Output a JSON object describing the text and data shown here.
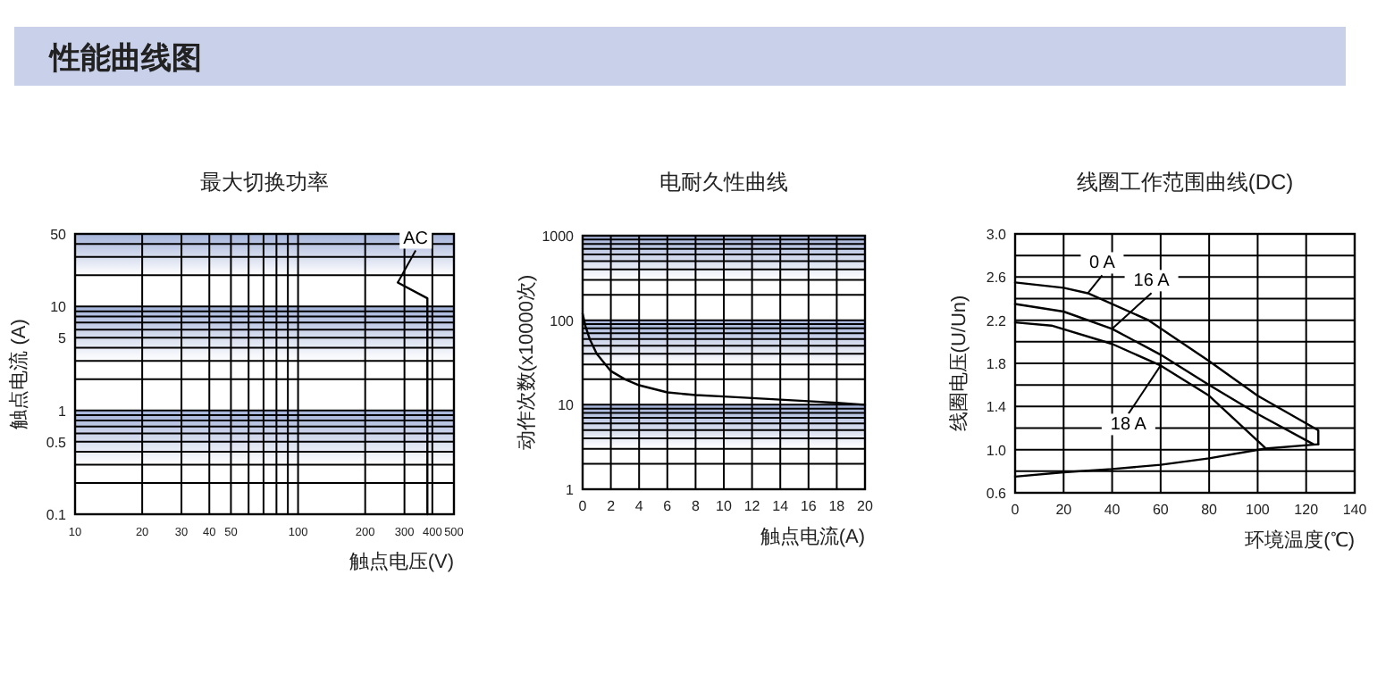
{
  "chart_data": [
    {
      "type": "other",
      "title": "性能曲线图"
    },
    {
      "type": "line",
      "title": "最大切换功率",
      "xlabel": "触点电压(V)",
      "ylabel": "触点电流 (A)",
      "log": "xy",
      "xlim": [
        10,
        500
      ],
      "ylim": [
        0.1,
        50
      ],
      "xticks": [
        10,
        20,
        30,
        40,
        50,
        {
          "value": 60,
          "label": null
        },
        {
          "value": 70,
          "label": null
        },
        {
          "value": 80,
          "label": null
        },
        {
          "value": 90,
          "label": null
        },
        100,
        200,
        300,
        400,
        500
      ],
      "yticks": [
        0.1,
        {
          "value": 0.2,
          "label": null
        },
        {
          "value": 0.3,
          "label": null
        },
        {
          "value": 0.4,
          "label": null
        },
        0.5,
        {
          "value": 0.6,
          "label": null
        },
        {
          "value": 0.7,
          "label": null
        },
        {
          "value": 0.8,
          "label": null
        },
        {
          "value": 0.9,
          "label": null
        },
        1,
        {
          "value": 2,
          "label": null
        },
        {
          "value": 3,
          "label": null
        },
        {
          "value": 4,
          "label": null
        },
        5,
        {
          "value": 6,
          "label": null
        },
        {
          "value": 7,
          "label": null
        },
        {
          "value": 8,
          "label": null
        },
        {
          "value": 9,
          "label": null
        },
        10,
        {
          "value": 20,
          "label": null
        },
        {
          "value": 30,
          "label": null
        },
        {
          "value": 40,
          "label": null
        },
        50
      ],
      "grid": true,
      "bands": [
        {
          "axis": "y",
          "from": 0.3,
          "to": 1,
          "color": "#a4b3da"
        },
        {
          "axis": "y",
          "from": 3,
          "to": 10,
          "color": "#a4b3da"
        },
        {
          "axis": "y",
          "from": 20,
          "to": 50,
          "color": "#a4b3da"
        }
      ],
      "series": [
        {
          "name": "AC",
          "color": "#000000",
          "x": [
            280,
            380,
            380
          ],
          "values": [
            17,
            12,
            0.1
          ]
        }
      ]
    },
    {
      "type": "line",
      "title": "电耐久性曲线",
      "xlabel": "触点电流(A)",
      "ylabel": "动作次数(x10000次)",
      "log": "y",
      "xlim": [
        0,
        20
      ],
      "ylim": [
        1,
        1000
      ],
      "xticks": [
        0,
        2,
        4,
        6,
        8,
        10,
        12,
        14,
        16,
        18,
        20
      ],
      "yticks": [
        1,
        {
          "value": 2,
          "label": null
        },
        {
          "value": 3,
          "label": null
        },
        {
          "value": 4,
          "label": null
        },
        {
          "value": 5,
          "label": null
        },
        {
          "value": 6,
          "label": null
        },
        {
          "value": 7,
          "label": null
        },
        {
          "value": 8,
          "label": null
        },
        {
          "value": 9,
          "label": null
        },
        10,
        {
          "value": 20,
          "label": null
        },
        {
          "value": 30,
          "label": null
        },
        {
          "value": 40,
          "label": null
        },
        {
          "value": 50,
          "label": null
        },
        {
          "value": 60,
          "label": null
        },
        {
          "value": 70,
          "label": null
        },
        {
          "value": 80,
          "label": null
        },
        {
          "value": 90,
          "label": null
        },
        100,
        {
          "value": 200,
          "label": null
        },
        {
          "value": 300,
          "label": null
        },
        {
          "value": 400,
          "label": null
        },
        {
          "value": 500,
          "label": null
        },
        {
          "value": 600,
          "label": null
        },
        {
          "value": 700,
          "label": null
        },
        {
          "value": 800,
          "label": null
        },
        {
          "value": 900,
          "label": null
        },
        1000
      ],
      "grid": true,
      "bands": [
        {
          "axis": "y",
          "from": 3,
          "to": 10,
          "color": "#a4b3da"
        },
        {
          "axis": "y",
          "from": 30,
          "to": 100,
          "color": "#a4b3da"
        },
        {
          "axis": "y",
          "from": 300,
          "to": 1000,
          "color": "#a4b3da"
        }
      ],
      "series": [
        {
          "color": "#000000",
          "x": [
            0,
            0.2,
            0.5,
            1,
            2,
            3,
            4,
            6,
            8,
            10,
            12,
            14,
            16,
            18,
            20
          ],
          "values": [
            120,
            85,
            60,
            40,
            25,
            20,
            17,
            14,
            13,
            12.5,
            12,
            11.5,
            11,
            10.5,
            10
          ]
        }
      ]
    },
    {
      "type": "line",
      "title": "线圈工作范围曲线(DC)",
      "xlabel": "环境温度(℃)",
      "ylabel": "线圈电压(U/Un)",
      "xlim": [
        0,
        140
      ],
      "ylim": [
        0.6,
        3.0
      ],
      "xticks": [
        0,
        20,
        40,
        60,
        80,
        100,
        120,
        140
      ],
      "yticks": [
        0.6,
        {
          "value": 0.8,
          "label": null
        },
        {
          "value": 1.0,
          "label": "1.0"
        },
        {
          "value": 1.2,
          "label": null
        },
        1.4,
        {
          "value": 1.6,
          "label": null
        },
        1.8,
        {
          "value": 2.0,
          "label": null
        },
        2.2,
        {
          "value": 2.4,
          "label": null
        },
        2.6,
        {
          "value": 2.8,
          "label": null
        },
        {
          "value": 3.0,
          "label": "3.0"
        }
      ],
      "grid": true,
      "series": [
        {
          "name": "0 A",
          "color": "#000000",
          "x": [
            0,
            20,
            30,
            55,
            80,
            100,
            125,
            125
          ],
          "values": [
            2.55,
            2.5,
            2.45,
            2.2,
            1.82,
            1.5,
            1.18,
            1.05
          ]
        },
        {
          "name": "16 A",
          "color": "#000000",
          "x": [
            0,
            20,
            40,
            60,
            80,
            100,
            123
          ],
          "values": [
            2.35,
            2.28,
            2.12,
            1.88,
            1.6,
            1.33,
            1.05
          ]
        },
        {
          "name": "18 A",
          "color": "#000000",
          "x": [
            0,
            15,
            40,
            60,
            80,
            103
          ],
          "values": [
            2.18,
            2.15,
            1.98,
            1.78,
            1.5,
            1.02
          ]
        },
        {
          "color": "#000000",
          "x": [
            0,
            20,
            40,
            60,
            80,
            103,
            125
          ],
          "values": [
            0.75,
            0.79,
            0.82,
            0.86,
            0.92,
            1.01,
            1.05
          ]
        }
      ]
    }
  ]
}
